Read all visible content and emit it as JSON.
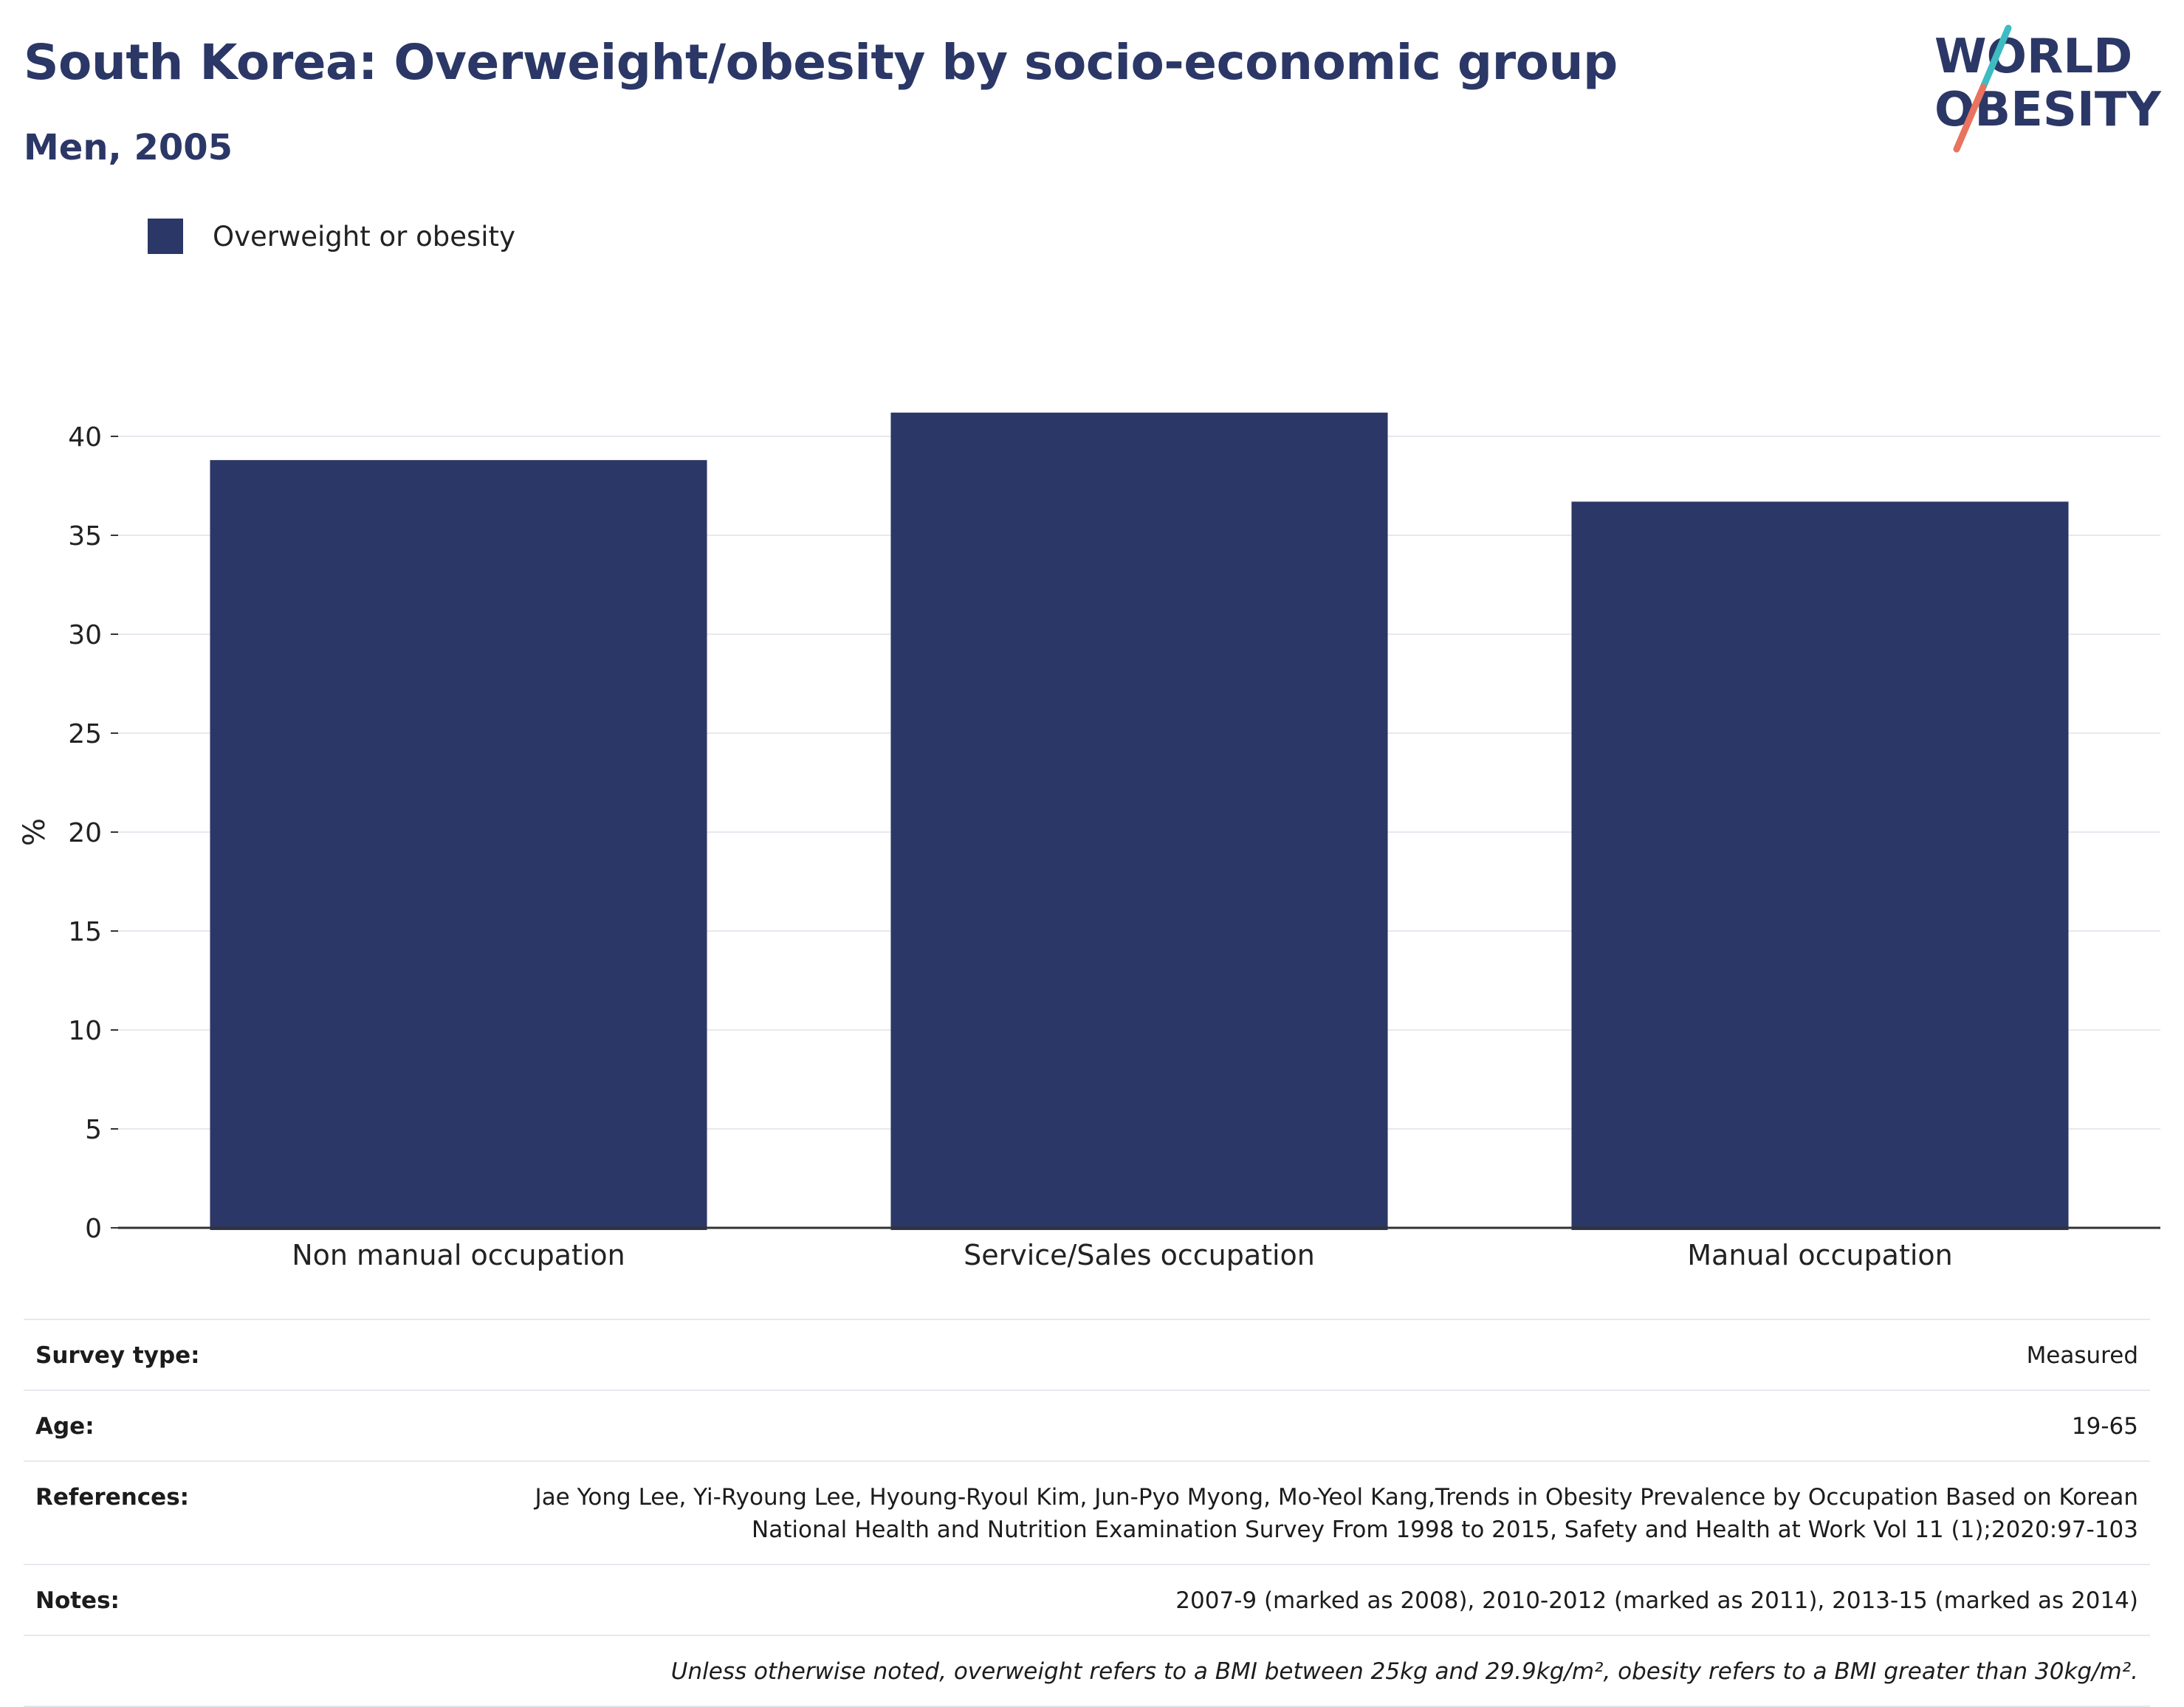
{
  "header": {
    "title": "South Korea: Overweight/obesity by socio-economic group",
    "subtitle": "Men, 2005"
  },
  "logo": {
    "line1": "WORLD",
    "line2": "OBESITY",
    "colors": {
      "text": "#2b3766",
      "slash_teal": "#3dbcc2",
      "slash_coral": "#e8735f"
    }
  },
  "colors": {
    "bar": "#2b3766",
    "grid": "#e6e9ef",
    "axis": "#333333"
  },
  "chart_data": {
    "type": "bar",
    "categories": [
      "Non manual occupation",
      "Service/Sales occupation",
      "Manual occupation"
    ],
    "series": [
      {
        "name": "Overweight or obesity",
        "values": [
          38.8,
          41.2,
          36.7
        ]
      }
    ],
    "ylabel": "%",
    "ylim": [
      0,
      40
    ],
    "yticks": [
      0,
      5,
      10,
      15,
      20,
      25,
      30,
      35,
      40
    ],
    "grid": true,
    "legend_position": "top-left"
  },
  "meta": {
    "survey_type": {
      "label": "Survey type:",
      "value": "Measured"
    },
    "age": {
      "label": "Age:",
      "value": "19-65"
    },
    "references": {
      "label": "References:",
      "value": "Jae Yong Lee, Yi-Ryoung Lee, Hyoung-Ryoul Kim, Jun-Pyo Myong, Mo-Yeol Kang,Trends in Obesity Prevalence by Occupation Based on Korean National Health and Nutrition Examination Survey From 1998 to 2015, Safety and Health at Work Vol 11 (1);2020:97-103"
    },
    "notes": {
      "label": "Notes:",
      "value": "2007-9 (marked as 2008), 2010-2012 (marked as 2011), 2013-15 (marked as 2014)"
    },
    "disclaimer": "Unless otherwise noted, overweight refers to a BMI between 25kg and 29.9kg/m², obesity refers to a BMI greater than 30kg/m²."
  }
}
